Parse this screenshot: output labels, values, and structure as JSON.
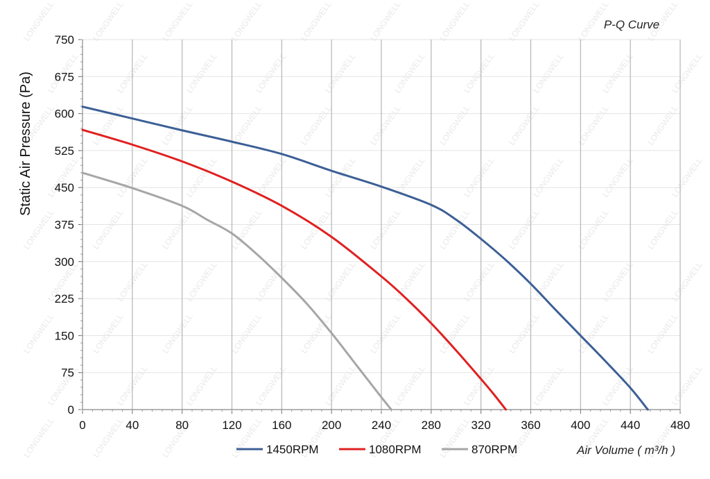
{
  "chart_data": {
    "type": "line",
    "title": "P-Q Curve",
    "xlabel": "Air Volume ( m³/h )",
    "ylabel": "Static Air Pressure  (Pa)",
    "xlim": [
      0,
      480
    ],
    "ylim": [
      0,
      750
    ],
    "x_ticks": [
      "0",
      "40",
      "80",
      "120",
      "160",
      "200",
      "240",
      "280",
      "320",
      "360",
      "400",
      "440",
      "480"
    ],
    "y_ticks": [
      "0",
      "75",
      "150",
      "225",
      "300",
      "375",
      "450",
      "525",
      "600",
      "675",
      "750"
    ],
    "grid": true,
    "legend_position": "bottom-center",
    "watermark": "LONGWELL",
    "series": [
      {
        "name": "1450RPM",
        "color": "#3c5f96",
        "x": [
          0,
          40,
          80,
          120,
          160,
          200,
          240,
          280,
          300,
          320,
          340,
          360,
          380,
          400,
          420,
          440,
          454
        ],
        "y": [
          614,
          590,
          566,
          543,
          518,
          484,
          452,
          415,
          385,
          346,
          303,
          255,
          202,
          150,
          98,
          44,
          0
        ]
      },
      {
        "name": "1080RPM",
        "color": "#e02020",
        "x": [
          0,
          40,
          80,
          120,
          160,
          200,
          240,
          260,
          280,
          300,
          320,
          330,
          340
        ],
        "y": [
          567,
          537,
          503,
          462,
          413,
          350,
          270,
          225,
          175,
          120,
          62,
          32,
          0
        ]
      },
      {
        "name": "870RPM",
        "color": "#a6a6a6",
        "x": [
          0,
          40,
          80,
          100,
          120,
          140,
          160,
          180,
          200,
          220,
          240,
          248
        ],
        "y": [
          480,
          449,
          413,
          385,
          357,
          315,
          267,
          215,
          155,
          90,
          25,
          0
        ]
      }
    ]
  }
}
